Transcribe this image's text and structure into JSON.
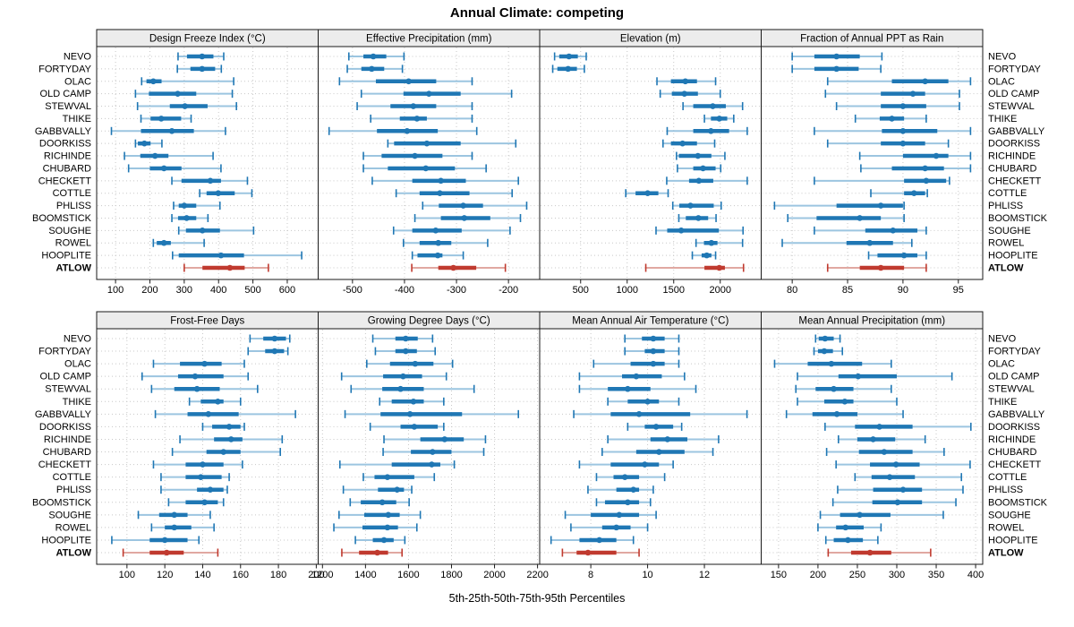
{
  "title": "Annual Climate: competing",
  "xlabel": "5th-25th-50th-75th-95th Percentiles",
  "colors": {
    "series": "#1f77b4",
    "series_light": "#9cc5e0",
    "highlight": "#c03a2f",
    "highlight_light": "#e0a8a1",
    "grid": "#c8c8c8",
    "strip_bg": "#ececec",
    "panel_bg": "#ffffff",
    "border": "#1a1a1a",
    "text": "#000000"
  },
  "chart_data": {
    "type": "scatter",
    "style": "trellis five-number percentile interval plot (5th-25th-50th-75th-95th per site)",
    "grid": "dotted",
    "legend": "none",
    "percentile_labels": [
      "5th",
      "25th",
      "50th",
      "75th",
      "95th"
    ],
    "sites": [
      "NEVO",
      "FORTYDAY",
      "OLAC",
      "OLD CAMP",
      "STEWVAL",
      "THIKE",
      "GABBVALLY",
      "DOORKISS",
      "RICHINDE",
      "CHUBARD",
      "CHECKETT",
      "COTTLE",
      "PHLISS",
      "BOOMSTICK",
      "SOUGHE",
      "ROWEL",
      "HOOPLITE",
      "ATLOW"
    ],
    "highlight_site": "ATLOW",
    "panels": [
      {
        "title": "Design Freeze Index (°C)",
        "xlim": [
          45,
          690
        ],
        "xticks": [
          100,
          200,
          300,
          400,
          500,
          600
        ],
        "p5": [
          282,
          280,
          176,
          158,
          164,
          174,
          88,
          158,
          126,
          138,
          264,
          345,
          269,
          264,
          284,
          210,
          266,
          300
        ],
        "p25": [
          308,
          318,
          190,
          197,
          258,
          202,
          174,
          165,
          172,
          200,
          292,
          365,
          284,
          282,
          305,
          220,
          284,
          353
        ],
        "p50": [
          352,
          352,
          210,
          281,
          302,
          233,
          264,
          184,
          215,
          241,
          376,
          399,
          300,
          307,
          353,
          241,
          407,
          433
        ],
        "p75": [
          385,
          390,
          234,
          335,
          368,
          291,
          328,
          202,
          254,
          292,
          407,
          447,
          335,
          335,
          404,
          261,
          474,
          476
        ],
        "p95": [
          415,
          408,
          444,
          440,
          452,
          320,
          420,
          235,
          384,
          407,
          484,
          497,
          404,
          369,
          502,
          358,
          642,
          545
        ]
      },
      {
        "title": "Effective Precipitation (mm)",
        "xlim": [
          -566,
          -140
        ],
        "xticks": [
          -500,
          -400,
          -300,
          -200
        ],
        "p5": [
          -507,
          -510,
          -525,
          -483,
          -491,
          -465,
          -545,
          -432,
          -479,
          -479,
          -462,
          -416,
          -365,
          -380,
          -421,
          -402,
          -385,
          -386
        ],
        "p25": [
          -479,
          -483,
          -455,
          -402,
          -427,
          -409,
          -453,
          -420,
          -444,
          -432,
          -385,
          -371,
          -334,
          -330,
          -385,
          -371,
          -375,
          -335
        ],
        "p50": [
          -460,
          -463,
          -392,
          -353,
          -383,
          -376,
          -395,
          -357,
          -380,
          -359,
          -330,
          -332,
          -287,
          -285,
          -340,
          -335,
          -336,
          -306
        ],
        "p75": [
          -435,
          -439,
          -339,
          -292,
          -339,
          -357,
          -336,
          -292,
          -327,
          -303,
          -282,
          -275,
          -249,
          -235,
          -290,
          -310,
          -327,
          -262
        ],
        "p95": [
          -401,
          -404,
          -270,
          -194,
          -270,
          -270,
          -261,
          -186,
          -270,
          -243,
          -181,
          -193,
          -165,
          -177,
          -197,
          -240,
          -287,
          -206
        ]
      },
      {
        "title": "Elevation (m)",
        "xlim": [
          60,
          2440
        ],
        "xticks": [
          500,
          1000,
          1500,
          2000
        ],
        "p5": [
          220,
          200,
          1320,
          1355,
          1600,
          1830,
          1430,
          1385,
          1530,
          1540,
          1425,
          985,
          1490,
          1555,
          1310,
          1740,
          1700,
          1200
        ],
        "p25": [
          270,
          250,
          1470,
          1480,
          1710,
          1900,
          1710,
          1470,
          1555,
          1710,
          1665,
          1090,
          1560,
          1630,
          1430,
          1825,
          1800,
          1830
        ],
        "p50": [
          375,
          365,
          1625,
          1615,
          1920,
          1990,
          1900,
          1595,
          1760,
          1815,
          1770,
          1220,
          1680,
          1765,
          1580,
          1905,
          1855,
          1990
        ],
        "p75": [
          470,
          460,
          1750,
          1760,
          2060,
          2075,
          2095,
          1750,
          1905,
          1950,
          1925,
          1335,
          1930,
          1870,
          1985,
          1970,
          1905,
          2050
        ],
        "p95": [
          560,
          540,
          1950,
          2000,
          2240,
          2145,
          2290,
          1940,
          2050,
          2005,
          2290,
          1440,
          2010,
          1955,
          2245,
          2240,
          1950,
          2250
        ]
      },
      {
        "title": "Fraction of Annual PPT as Rain",
        "xlim": [
          77.2,
          97.2
        ],
        "xticks": [
          80,
          85,
          90,
          95
        ],
        "p5": [
          80.0,
          80.0,
          83.2,
          83.0,
          84.0,
          85.7,
          82.0,
          83.2,
          86.1,
          86.2,
          82.0,
          87.1,
          78.4,
          79.6,
          82.0,
          79.1,
          86.9,
          83.2
        ],
        "p25": [
          82.0,
          82.0,
          89.0,
          88.0,
          88.0,
          87.9,
          88.1,
          88.0,
          90.0,
          89.0,
          90.1,
          90.1,
          84.0,
          82.2,
          86.6,
          84.9,
          87.7,
          86.1
        ],
        "p50": [
          84.0,
          84.0,
          92.0,
          90.9,
          90.0,
          89.0,
          90.0,
          90.0,
          93.0,
          92.0,
          92.1,
          91.0,
          88.0,
          86.1,
          89.1,
          87.0,
          90.1,
          88.0
        ],
        "p75": [
          86.1,
          86.0,
          94.1,
          92.0,
          92.1,
          90.1,
          93.1,
          92.0,
          94.1,
          93.7,
          93.9,
          92.0,
          90.0,
          88.0,
          91.3,
          89.1,
          91.3,
          90.1
        ],
        "p95": [
          88.1,
          88.0,
          96.1,
          95.1,
          95.1,
          92.1,
          96.1,
          94.1,
          96.1,
          96.1,
          94.2,
          92.2,
          90.1,
          90.1,
          92.1,
          90.8,
          92.1,
          92.1
        ]
      },
      {
        "title": "Frost-Free Days",
        "xlim": [
          84,
          201
        ],
        "xticks": [
          100,
          120,
          140,
          160,
          180,
          200
        ],
        "p5": [
          165,
          164,
          114,
          108,
          113,
          133,
          115,
          140,
          128,
          124,
          114,
          118,
          118,
          122,
          106,
          113,
          92,
          98
        ],
        "p25": [
          172,
          173,
          128,
          127,
          125,
          139,
          132,
          145,
          146,
          142,
          131,
          131,
          137,
          131,
          117,
          120,
          112,
          112
        ],
        "p50": [
          178,
          178,
          141,
          136,
          137,
          148,
          143,
          154,
          155,
          151,
          140,
          139,
          144,
          141,
          125,
          125,
          120,
          121
        ],
        "p75": [
          184,
          183,
          150,
          151,
          149,
          151,
          159,
          160,
          161,
          160,
          151,
          150,
          151,
          148,
          132,
          134,
          132,
          130
        ],
        "p95": [
          186,
          185,
          162,
          164,
          169,
          160,
          189,
          162,
          182,
          181,
          161,
          154,
          153,
          151,
          144,
          146,
          138,
          148
        ]
      },
      {
        "title": "Growing Degree Days (°C)",
        "xlim": [
          1180,
          2210
        ],
        "xticks": [
          1200,
          1400,
          1600,
          1800,
          2000,
          2200
        ],
        "p5": [
          1434,
          1446,
          1406,
          1289,
          1333,
          1466,
          1305,
          1422,
          1486,
          1482,
          1281,
          1390,
          1297,
          1329,
          1277,
          1253,
          1353,
          1290
        ],
        "p25": [
          1539,
          1539,
          1514,
          1482,
          1478,
          1522,
          1470,
          1563,
          1655,
          1611,
          1522,
          1442,
          1458,
          1378,
          1394,
          1386,
          1434,
          1370
        ],
        "p50": [
          1587,
          1587,
          1631,
          1575,
          1563,
          1623,
          1607,
          1627,
          1768,
          1712,
          1708,
          1502,
          1547,
          1478,
          1506,
          1502,
          1486,
          1455
        ],
        "p75": [
          1643,
          1639,
          1716,
          1663,
          1671,
          1671,
          1849,
          1736,
          1857,
          1800,
          1748,
          1627,
          1579,
          1543,
          1559,
          1551,
          1531,
          1505
        ],
        "p95": [
          1712,
          1724,
          1805,
          1776,
          1905,
          1764,
          2111,
          1764,
          1958,
          1950,
          1813,
          1720,
          1615,
          1603,
          1655,
          1639,
          1583,
          1570
        ]
      },
      {
        "title": "Mean Annual Air Temperature (°C)",
        "xlim": [
          6.2,
          14.0
        ],
        "xticks": [
          8,
          10,
          12
        ],
        "p5": [
          9.2,
          9.2,
          8.1,
          7.6,
          7.6,
          8.6,
          7.4,
          9.3,
          8.6,
          8.4,
          7.6,
          8.2,
          7.9,
          8.2,
          7.1,
          7.3,
          6.6,
          7.0
        ],
        "p25": [
          9.8,
          9.9,
          9.4,
          9.1,
          8.6,
          9.3,
          8.7,
          9.9,
          10.1,
          9.6,
          8.7,
          8.8,
          8.9,
          8.5,
          8.0,
          8.4,
          7.6,
          7.5
        ],
        "p50": [
          10.2,
          10.2,
          10.2,
          9.6,
          9.3,
          10.0,
          9.7,
          10.3,
          10.7,
          10.4,
          9.9,
          9.2,
          9.5,
          9.3,
          9.0,
          8.9,
          8.3,
          7.9
        ],
        "p75": [
          10.6,
          10.6,
          10.6,
          10.5,
          10.1,
          10.4,
          11.5,
          10.9,
          11.4,
          11.3,
          10.4,
          9.7,
          9.7,
          9.7,
          9.7,
          9.4,
          8.9,
          8.9
        ],
        "p95": [
          11.1,
          11.1,
          11.1,
          11.3,
          11.7,
          11.1,
          13.5,
          11.2,
          12.5,
          12.3,
          10.9,
          10.6,
          10.2,
          10.1,
          10.3,
          10.0,
          9.5,
          9.7
        ]
      },
      {
        "title": "Mean Annual Precipitation (mm)",
        "xlim": [
          128,
          409
        ],
        "xticks": [
          150,
          200,
          250,
          300,
          350,
          400
        ],
        "p5": [
          197,
          195,
          145,
          174,
          172,
          174,
          160,
          209,
          226,
          211,
          223,
          247,
          225,
          219,
          203,
          200,
          210,
          213
        ],
        "p25": [
          201,
          200,
          187,
          226,
          197,
          208,
          193,
          247,
          250,
          252,
          266,
          268,
          270,
          269,
          228,
          223,
          220,
          242
        ],
        "p50": [
          209,
          208,
          217,
          251,
          220,
          234,
          224,
          278,
          270,
          284,
          299,
          291,
          308,
          301,
          253,
          235,
          238,
          266
        ],
        "p75": [
          220,
          219,
          256,
          300,
          245,
          245,
          250,
          320,
          298,
          320,
          329,
          323,
          332,
          332,
          292,
          258,
          257,
          293
        ],
        "p95": [
          228,
          231,
          293,
          370,
          293,
          300,
          308,
          394,
          336,
          360,
          393,
          382,
          384,
          375,
          359,
          280,
          276,
          343
        ]
      }
    ]
  }
}
